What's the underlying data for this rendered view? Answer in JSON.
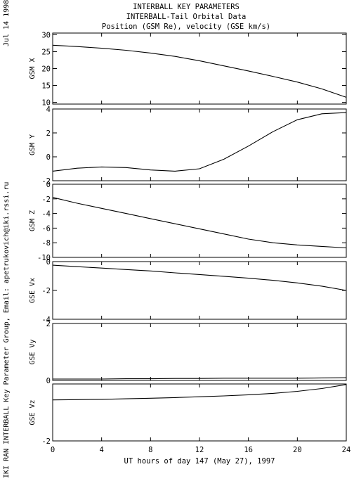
{
  "side_date": "Jul 14 1998",
  "side_credit": "IKI RAN INTERBALL Key Parameter Group, Email: apetrukovich@iki.rssi.ru",
  "chart_data": {
    "type": "line",
    "title": [
      "INTERBALL KEY PARAMETERS",
      "INTERBALL-Tail Orbital Data",
      "Position (GSM Re), velocity (GSE km/s)"
    ],
    "xlabel": "UT hours of day 147 (May 27), 1997",
    "xlim": [
      0,
      24
    ],
    "xticks": [
      "0",
      "4",
      "8",
      "12",
      "16",
      "20",
      "24"
    ],
    "grid": false,
    "panels": [
      {
        "ylabel": "GSM X",
        "ylim": [
          9.5,
          30.5
        ],
        "yticks": [
          {
            "v": 30,
            "t": "30"
          },
          {
            "v": 25,
            "t": "25"
          },
          {
            "v": 20,
            "t": "20"
          },
          {
            "v": 15,
            "t": "15"
          },
          {
            "v": 10,
            "t": "10"
          }
        ],
        "series": [
          {
            "x": [
              0,
              2,
              4,
              6,
              8,
              10,
              12,
              14,
              16,
              18,
              20,
              22,
              24
            ],
            "y": [
              26.9,
              26.5,
              26.0,
              25.4,
              24.6,
              23.6,
              22.3,
              20.8,
              19.3,
              17.7,
              16.0,
              14.0,
              11.5
            ]
          }
        ]
      },
      {
        "ylabel": "GSM Y",
        "ylim": [
          -2,
          4
        ],
        "yticks": [
          {
            "v": 4,
            "t": "4"
          },
          {
            "v": 2,
            "t": "2"
          },
          {
            "v": 0,
            "t": "0"
          },
          {
            "v": -2,
            "t": "-2"
          }
        ],
        "series": [
          {
            "x": [
              0,
              2,
              4,
              6,
              8,
              10,
              12,
              14,
              16,
              18,
              20,
              22,
              24
            ],
            "y": [
              -1.2,
              -0.95,
              -0.85,
              -0.9,
              -1.1,
              -1.2,
              -1.0,
              -0.2,
              0.9,
              2.1,
              3.1,
              3.6,
              3.7
            ]
          }
        ]
      },
      {
        "ylabel": "GSM Z",
        "ylim": [
          -10,
          0
        ],
        "yticks": [
          {
            "v": 0,
            "t": "0"
          },
          {
            "v": -2,
            "t": "-2"
          },
          {
            "v": -4,
            "t": "-4"
          },
          {
            "v": -6,
            "t": "-6"
          },
          {
            "v": -8,
            "t": "-8"
          },
          {
            "v": -10,
            "t": "-10"
          }
        ],
        "series": [
          {
            "x": [
              0,
              2,
              4,
              6,
              8,
              10,
              12,
              14,
              16,
              18,
              20,
              22,
              24
            ],
            "y": [
              -1.8,
              -2.6,
              -3.3,
              -4.0,
              -4.7,
              -5.4,
              -6.1,
              -6.8,
              -7.5,
              -8.0,
              -8.3,
              -8.5,
              -8.7
            ]
          }
        ]
      },
      {
        "ylabel": "GSE Vx",
        "ylim": [
          -4,
          0
        ],
        "yticks": [
          {
            "v": 0,
            "t": "0"
          },
          {
            "v": -2,
            "t": "-2"
          },
          {
            "v": -4,
            "t": "-4"
          }
        ],
        "series": [
          {
            "x": [
              0,
              2,
              4,
              6,
              8,
              10,
              12,
              14,
              16,
              18,
              20,
              22,
              24
            ],
            "y": [
              -0.25,
              -0.35,
              -0.45,
              -0.55,
              -0.65,
              -0.78,
              -0.9,
              -1.02,
              -1.15,
              -1.3,
              -1.48,
              -1.7,
              -2.0
            ]
          }
        ]
      },
      {
        "ylabel": "GSE Vy",
        "ylim": [
          0,
          2
        ],
        "yticks": [
          {
            "v": 2,
            "t": "2"
          },
          {
            "v": 0,
            "t": "0"
          }
        ],
        "series": [
          {
            "x": [
              0,
              2,
              4,
              6,
              8,
              10,
              12,
              14,
              16,
              18,
              20,
              22,
              24
            ],
            "y": [
              0.05,
              0.05,
              0.05,
              0.06,
              0.06,
              0.07,
              0.07,
              0.08,
              0.08,
              0.08,
              0.08,
              0.09,
              0.1
            ]
          }
        ]
      },
      {
        "ylabel": "GSE Vz",
        "ylim": [
          -2,
          0
        ],
        "yticks": [
          {
            "v": -2,
            "t": "-2"
          }
        ],
        "series": [
          {
            "x": [
              0,
              2,
              4,
              6,
              8,
              10,
              12,
              14,
              16,
              18,
              20,
              22,
              24
            ],
            "y": [
              -0.56,
              -0.55,
              -0.54,
              -0.52,
              -0.5,
              -0.48,
              -0.45,
              -0.42,
              -0.38,
              -0.33,
              -0.26,
              -0.16,
              -0.02
            ]
          }
        ]
      }
    ]
  }
}
